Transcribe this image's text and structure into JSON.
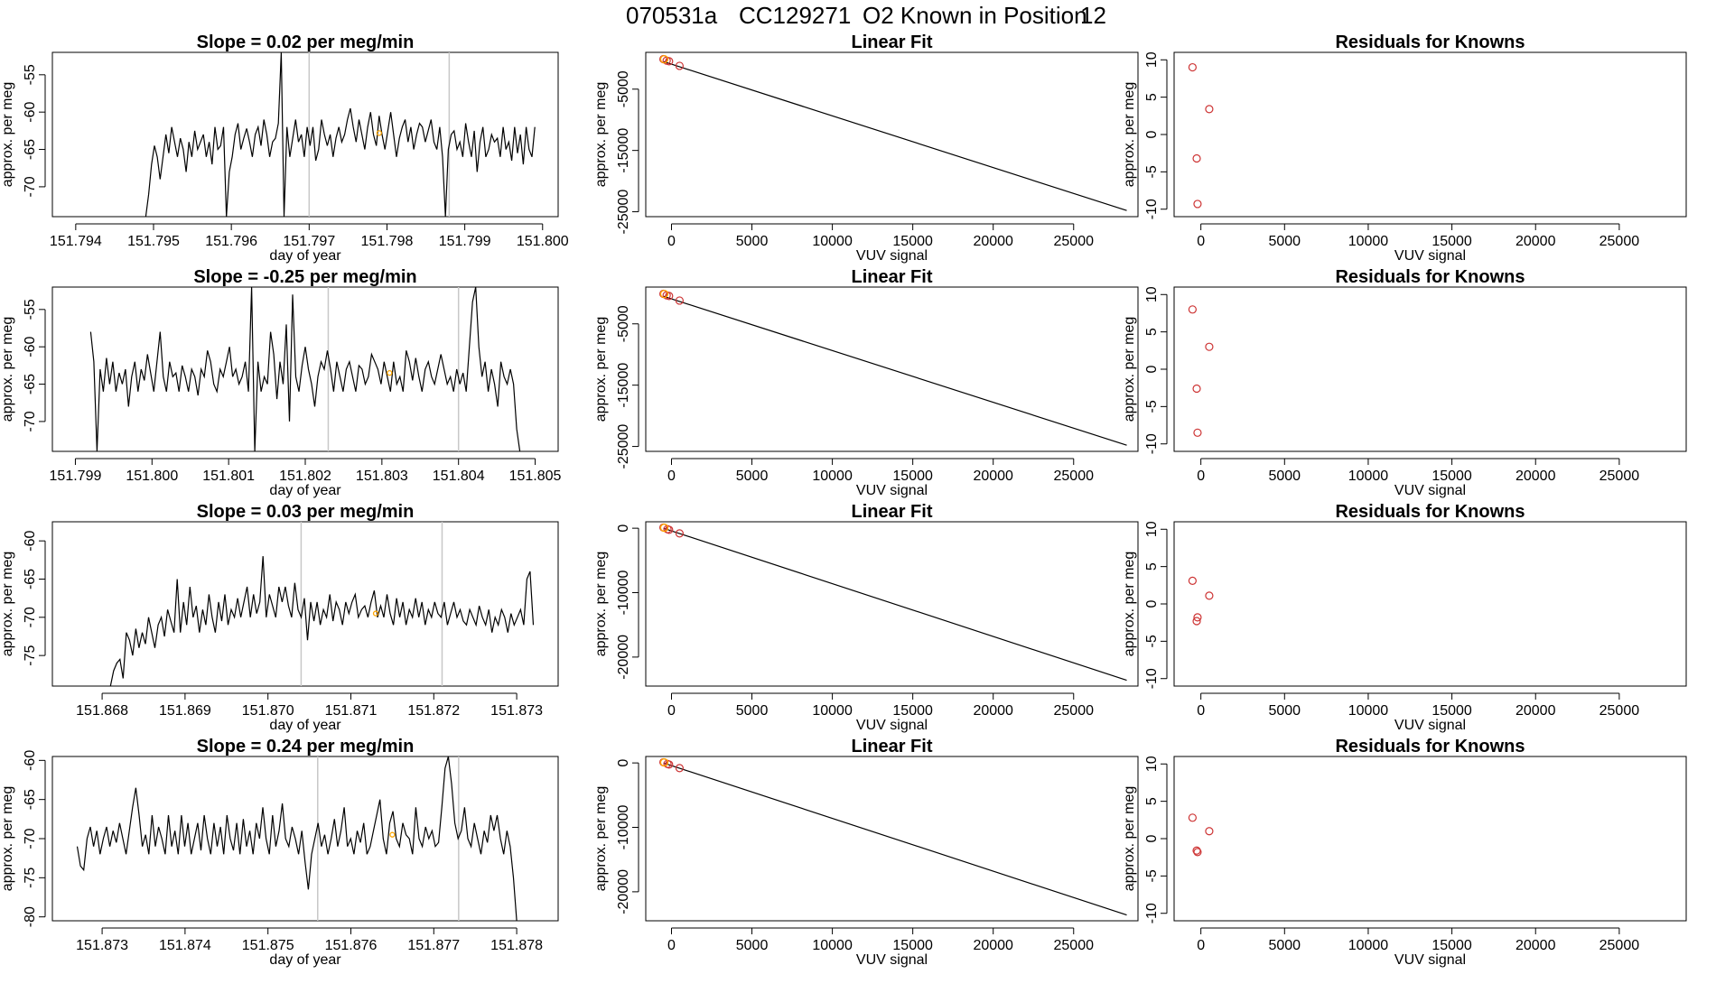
{
  "figure": {
    "title_run": "070531a",
    "title_cylinder": "CC129271",
    "title_position_text": "O2 Known in Position",
    "title_position_number": "12"
  },
  "colors": {
    "line": "#000000",
    "point_orange": "#ffa500",
    "point_red": "#cd3333",
    "vline": "#c8c8c8"
  },
  "chart_data": [
    {
      "type": "line",
      "row": 0,
      "title_prefix": "Slope =",
      "slope": "0.02",
      "title_suffix": "per meg/min",
      "xlabel": "day of year",
      "ylabel": "approx. per meg",
      "xlim": [
        151.7937,
        151.8002
      ],
      "ylim": [
        -74,
        -52
      ],
      "xticks": [
        151.794,
        151.795,
        151.796,
        151.797,
        151.798,
        151.799,
        151.8
      ],
      "xtick_labels": [
        "151.794",
        "151.795",
        "151.796",
        "151.797",
        "151.798",
        "151.799",
        "151.800"
      ],
      "yticks": [
        -55,
        -60,
        -65,
        -70
      ],
      "ytick_labels": [
        "-55",
        "-60",
        "-65",
        "-70"
      ],
      "vlines": [
        151.797,
        151.7988
      ],
      "orange_point": {
        "x": 151.7979,
        "y": -62.8
      },
      "x_start": 151.7949,
      "x_end": 151.7999,
      "y": [
        -74,
        -71,
        -67,
        -64.5,
        -66,
        -69,
        -66,
        -63,
        -65.5,
        -62,
        -64,
        -66,
        -63.5,
        -65,
        -68,
        -64,
        -66,
        -62.5,
        -65,
        -64,
        -63,
        -66,
        -64,
        -67,
        -62,
        -65,
        -64.5,
        -62,
        -74,
        -68,
        -66,
        -63,
        -61.5,
        -65,
        -63.5,
        -62.2,
        -64,
        -66,
        -63,
        -62,
        -64.5,
        -61,
        -63,
        -66,
        -64,
        -63.5,
        -61.5,
        -52,
        -74,
        -62,
        -66,
        -63.5,
        -61,
        -64,
        -63,
        -66,
        -62,
        -64.5,
        -62,
        -66.5,
        -65,
        -61,
        -63,
        -64.5,
        -63,
        -66,
        -63.5,
        -62,
        -64,
        -63,
        -61,
        -59.5,
        -62,
        -64,
        -61,
        -63,
        -65,
        -62,
        -60,
        -63,
        -64.5,
        -60.5,
        -63,
        -65,
        -62.5,
        -60,
        -63,
        -66,
        -63.5,
        -62,
        -61,
        -64,
        -62,
        -65,
        -63,
        -61.5,
        -62,
        -64,
        -62.5,
        -61,
        -64,
        -65,
        -62,
        -66,
        -74,
        -65,
        -63,
        -62.5,
        -65,
        -64,
        -66,
        -61.5,
        -64,
        -66,
        -62.5,
        -68,
        -64,
        -62,
        -66,
        -65,
        -63,
        -64,
        -63.5,
        -66,
        -62,
        -65,
        -64,
        -66.5,
        -62,
        -65.5,
        -63,
        -67,
        -62,
        -65,
        -66,
        -62
      ]
    },
    {
      "type": "scatter+line",
      "row": 0,
      "title": "Linear Fit",
      "xlabel": "VUV signal",
      "ylabel": "approx. per meg",
      "xlim": [
        -1600,
        29000
      ],
      "ylim": [
        -25800,
        1000
      ],
      "xticks": [
        0,
        5000,
        10000,
        15000,
        20000,
        25000
      ],
      "xtick_labels": [
        "0",
        "5000",
        "10000",
        "15000",
        "20000",
        "25000"
      ],
      "yticks": [
        -5000,
        -15000,
        -25000
      ],
      "ytick_labels": [
        "-5000",
        "-15000",
        "-25000"
      ],
      "fit": {
        "x1": -500,
        "y1": -500,
        "x2": 28300,
        "y2": -24800
      },
      "red_points": [
        {
          "x": -500,
          "y": -100
        },
        {
          "x": -300,
          "y": -350
        },
        {
          "x": -150,
          "y": -450
        },
        {
          "x": 500,
          "y": -1200
        }
      ],
      "orange_points": [
        {
          "x": -450,
          "y": -120
        }
      ]
    },
    {
      "type": "scatter",
      "row": 0,
      "title": "Residuals for Knowns",
      "xlabel": "VUV signal",
      "ylabel": "approx. per meg",
      "xlim": [
        -1600,
        29000
      ],
      "ylim": [
        -11,
        11
      ],
      "xticks": [
        0,
        5000,
        10000,
        15000,
        20000,
        25000
      ],
      "xtick_labels": [
        "0",
        "5000",
        "10000",
        "15000",
        "20000",
        "25000"
      ],
      "yticks": [
        10,
        5,
        0,
        -5,
        -10
      ],
      "ytick_labels": [
        "10",
        "5",
        "0",
        "-5",
        "-10"
      ],
      "red_points": [
        {
          "x": -500,
          "y": 9
        },
        {
          "x": 500,
          "y": 3.4
        },
        {
          "x": -250,
          "y": -3.2
        },
        {
          "x": -200,
          "y": -9.3
        }
      ]
    },
    {
      "type": "line",
      "row": 1,
      "title_prefix": "Slope =",
      "slope": "-0.25",
      "title_suffix": "per meg/min",
      "xlabel": "day of year",
      "ylabel": "approx. per meg",
      "xlim": [
        151.7987,
        151.8053
      ],
      "ylim": [
        -74,
        -52
      ],
      "xticks": [
        151.799,
        151.8,
        151.801,
        151.802,
        151.803,
        151.804,
        151.805
      ],
      "xtick_labels": [
        "151.799",
        "151.800",
        "151.801",
        "151.802",
        "151.803",
        "151.804",
        "151.805"
      ],
      "yticks": [
        -55,
        -60,
        -65,
        -70
      ],
      "ytick_labels": [
        "-55",
        "-60",
        "-65",
        "-70"
      ],
      "vlines": [
        151.8023,
        151.804
      ],
      "orange_point": {
        "x": 151.8031,
        "y": -63.5
      },
      "x_start": 151.7992,
      "x_end": 151.8048,
      "y": [
        -58,
        -62,
        -74,
        -63,
        -66,
        -61.5,
        -65,
        -62,
        -66,
        -63.5,
        -65,
        -63,
        -68,
        -64,
        -62,
        -66,
        -63,
        -64.5,
        -61,
        -63.5,
        -66,
        -62,
        -58,
        -64,
        -66,
        -62,
        -64,
        -63.5,
        -66,
        -62.5,
        -64,
        -66,
        -63,
        -64,
        -66.5,
        -63,
        -64,
        -60.5,
        -62,
        -65,
        -66,
        -63,
        -64,
        -62,
        -60,
        -64,
        -63,
        -65,
        -64,
        -62,
        -66,
        -52,
        -74,
        -62,
        -66,
        -64,
        -65,
        -58,
        -61,
        -67,
        -62,
        -65,
        -57,
        -70,
        -53,
        -64,
        -66,
        -62.5,
        -60,
        -63,
        -65,
        -68,
        -64,
        -62,
        -63,
        -60.5,
        -63,
        -66,
        -62,
        -64,
        -66,
        -63,
        -62,
        -64,
        -66,
        -62.5,
        -63,
        -65,
        -64,
        -61,
        -62,
        -63,
        -65,
        -62,
        -64,
        -66,
        -62,
        -65,
        -64,
        -66,
        -60.5,
        -62,
        -64.5,
        -61.5,
        -64,
        -66,
        -63,
        -62,
        -64,
        -65,
        -63,
        -61,
        -63,
        -65,
        -64,
        -66,
        -63,
        -65,
        -63.5,
        -66,
        -60,
        -54,
        -52,
        -60,
        -64,
        -62,
        -66,
        -63,
        -65,
        -68,
        -62,
        -64,
        -65,
        -63,
        -65,
        -71,
        -74
      ]
    },
    {
      "type": "scatter+line",
      "row": 1,
      "title": "Linear Fit",
      "xlabel": "VUV signal",
      "ylabel": "approx. per meg",
      "xlim": [
        -1600,
        29000
      ],
      "ylim": [
        -25800,
        1000
      ],
      "xticks": [
        0,
        5000,
        10000,
        15000,
        20000,
        25000
      ],
      "xtick_labels": [
        "0",
        "5000",
        "10000",
        "15000",
        "20000",
        "25000"
      ],
      "yticks": [
        -5000,
        -15000,
        -25000
      ],
      "ytick_labels": [
        "-5000",
        "-15000",
        "-25000"
      ],
      "fit": {
        "x1": -500,
        "y1": -500,
        "x2": 28300,
        "y2": -24800
      },
      "red_points": [
        {
          "x": -500,
          "y": -100
        },
        {
          "x": -300,
          "y": -350
        },
        {
          "x": -150,
          "y": -450
        },
        {
          "x": 500,
          "y": -1200
        }
      ],
      "orange_points": [
        {
          "x": -450,
          "y": -120
        }
      ]
    },
    {
      "type": "scatter",
      "row": 1,
      "title": "Residuals for Knowns",
      "xlabel": "VUV signal",
      "ylabel": "approx. per meg",
      "xlim": [
        -1600,
        29000
      ],
      "ylim": [
        -11,
        11
      ],
      "xticks": [
        0,
        5000,
        10000,
        15000,
        20000,
        25000
      ],
      "xtick_labels": [
        "0",
        "5000",
        "10000",
        "15000",
        "20000",
        "25000"
      ],
      "yticks": [
        10,
        5,
        0,
        -5,
        -10
      ],
      "ytick_labels": [
        "10",
        "5",
        "0",
        "-5",
        "-10"
      ],
      "red_points": [
        {
          "x": -500,
          "y": 8
        },
        {
          "x": 500,
          "y": 3
        },
        {
          "x": -250,
          "y": -2.6
        },
        {
          "x": -200,
          "y": -8.5
        }
      ]
    },
    {
      "type": "line",
      "row": 2,
      "title_prefix": "Slope =",
      "slope": "0.03",
      "title_suffix": "per meg/min",
      "xlabel": "day of year",
      "ylabel": "approx. per meg",
      "xlim": [
        151.8674,
        151.8735
      ],
      "ylim": [
        -79,
        -57.5
      ],
      "xticks": [
        151.868,
        151.869,
        151.87,
        151.871,
        151.872,
        151.873
      ],
      "xtick_labels": [
        "151.868",
        "151.869",
        "151.870",
        "151.871",
        "151.872",
        "151.873"
      ],
      "yticks": [
        -60,
        -65,
        -70,
        -75
      ],
      "ytick_labels": [
        "-60",
        "-65",
        "-70",
        "-75"
      ],
      "vlines": [
        151.8704,
        151.8721
      ],
      "orange_point": {
        "x": 151.8713,
        "y": -69.5
      },
      "x_start": 151.8681,
      "x_end": 151.8732,
      "y": [
        -79,
        -77,
        -76,
        -75.5,
        -78,
        -72,
        -73,
        -75,
        -71.5,
        -74,
        -72,
        -73.5,
        -70,
        -72,
        -74,
        -71,
        -70,
        -72.5,
        -69,
        -70.5,
        -72,
        -65,
        -72,
        -68,
        -71,
        -66,
        -70,
        -68.5,
        -72,
        -69,
        -71,
        -67,
        -70,
        -72,
        -68,
        -70.5,
        -67,
        -71,
        -69,
        -70,
        -67.5,
        -70,
        -68,
        -66,
        -70,
        -67,
        -69.5,
        -68,
        -62,
        -70,
        -67,
        -68.5,
        -70,
        -66,
        -68,
        -66,
        -68.5,
        -70,
        -65.5,
        -69,
        -70,
        -67.5,
        -73,
        -68,
        -70.5,
        -68,
        -71,
        -69,
        -70,
        -67,
        -70.5,
        -68,
        -69,
        -71,
        -68,
        -69.5,
        -68,
        -67,
        -70,
        -69,
        -68.5,
        -70,
        -68,
        -66.5,
        -70,
        -68.5,
        -70,
        -67,
        -69.5,
        -71,
        -67.5,
        -70,
        -68,
        -71,
        -69,
        -70,
        -67.5,
        -70,
        -68,
        -71,
        -69,
        -70,
        -68,
        -69.5,
        -70,
        -68,
        -71,
        -69.5,
        -68,
        -70,
        -69,
        -70.5,
        -71,
        -69,
        -70,
        -71,
        -68.5,
        -70,
        -71,
        -69,
        -72,
        -70,
        -71,
        -69,
        -70,
        -72,
        -69.5,
        -71,
        -70,
        -69,
        -71,
        -65,
        -64,
        -71
      ]
    },
    {
      "type": "scatter+line",
      "row": 2,
      "title": "Linear Fit",
      "xlabel": "VUV signal",
      "ylabel": "approx. per meg",
      "xlim": [
        -1600,
        29000
      ],
      "ylim": [
        -24500,
        1000
      ],
      "xticks": [
        0,
        5000,
        10000,
        15000,
        20000,
        25000
      ],
      "xtick_labels": [
        "0",
        "5000",
        "10000",
        "15000",
        "20000",
        "25000"
      ],
      "yticks": [
        0,
        -10000,
        -20000
      ],
      "ytick_labels": [
        "0",
        "-10000",
        "-20000"
      ],
      "fit": {
        "x1": -500,
        "y1": 0,
        "x2": 28300,
        "y2": -23600
      },
      "red_points": [
        {
          "x": -500,
          "y": 100
        },
        {
          "x": -250,
          "y": -150
        },
        {
          "x": -150,
          "y": -250
        },
        {
          "x": 500,
          "y": -800
        }
      ],
      "orange_points": [
        {
          "x": -450,
          "y": 80
        }
      ]
    },
    {
      "type": "scatter",
      "row": 2,
      "title": "Residuals for Knowns",
      "xlabel": "VUV signal",
      "ylabel": "approx. per meg",
      "xlim": [
        -1600,
        29000
      ],
      "ylim": [
        -11,
        11
      ],
      "xticks": [
        0,
        5000,
        10000,
        15000,
        20000,
        25000
      ],
      "xtick_labels": [
        "0",
        "5000",
        "10000",
        "15000",
        "20000",
        "25000"
      ],
      "yticks": [
        10,
        5,
        0,
        -5,
        -10
      ],
      "ytick_labels": [
        "10",
        "5",
        "0",
        "-5",
        "-10"
      ],
      "red_points": [
        {
          "x": -500,
          "y": 3.1
        },
        {
          "x": 500,
          "y": 1.1
        },
        {
          "x": -200,
          "y": -1.8
        },
        {
          "x": -250,
          "y": -2.3
        }
      ]
    },
    {
      "type": "line",
      "row": 3,
      "title_prefix": "Slope =",
      "slope": "0.24",
      "title_suffix": "per meg/min",
      "xlabel": "day of year",
      "ylabel": "approx. per meg",
      "xlim": [
        151.8724,
        151.8785
      ],
      "ylim": [
        -80.5,
        -59.5
      ],
      "xticks": [
        151.873,
        151.874,
        151.875,
        151.876,
        151.877,
        151.878
      ],
      "xtick_labels": [
        "151.873",
        "151.874",
        "151.875",
        "151.876",
        "151.877",
        "151.878"
      ],
      "yticks": [
        -60,
        -65,
        -70,
        -75,
        -80
      ],
      "ytick_labels": [
        "-60",
        "-65",
        "-70",
        "-75",
        "-80"
      ],
      "vlines": [
        151.8756,
        151.8773
      ],
      "orange_point": {
        "x": 151.8765,
        "y": -69.5
      },
      "x_start": 151.8727,
      "x_end": 151.878,
      "y": [
        -71,
        -73.5,
        -74,
        -70,
        -68.5,
        -71,
        -69,
        -72,
        -70,
        -68.5,
        -71,
        -69,
        -70.5,
        -68,
        -70,
        -72,
        -69,
        -66,
        -63.5,
        -67,
        -71,
        -69.5,
        -72,
        -67,
        -71,
        -68.5,
        -70,
        -72,
        -67,
        -71,
        -69,
        -72,
        -67,
        -71,
        -68,
        -72,
        -70,
        -68,
        -71.5,
        -67,
        -70,
        -72,
        -68,
        -71,
        -68.5,
        -72,
        -67,
        -70,
        -71.5,
        -68,
        -72,
        -67.5,
        -71,
        -69,
        -72,
        -68,
        -70,
        -66,
        -70,
        -72,
        -67,
        -71,
        -69,
        -65.5,
        -70,
        -71,
        -68.5,
        -70,
        -72,
        -69,
        -73,
        -76.5,
        -72,
        -70,
        -68,
        -71,
        -69.5,
        -72,
        -70,
        -67.5,
        -71,
        -69,
        -66,
        -71,
        -70,
        -72,
        -69,
        -70.5,
        -68,
        -72,
        -71,
        -69,
        -67,
        -65,
        -70,
        -72,
        -68,
        -66.5,
        -70,
        -71,
        -68,
        -69.5,
        -70,
        -72,
        -66,
        -70,
        -71,
        -68.5,
        -70,
        -69,
        -71,
        -70.5,
        -66,
        -61,
        -59.5,
        -63,
        -68,
        -70,
        -69,
        -66,
        -70,
        -71,
        -68,
        -70,
        -72,
        -69,
        -70.5,
        -67,
        -69,
        -67,
        -70,
        -72,
        -69,
        -71,
        -75,
        -80.5
      ]
    },
    {
      "type": "scatter+line",
      "row": 3,
      "title": "Linear Fit",
      "xlabel": "VUV signal",
      "ylabel": "approx. per meg",
      "xlim": [
        -1600,
        29000
      ],
      "ylim": [
        -24500,
        1000
      ],
      "xticks": [
        0,
        5000,
        10000,
        15000,
        20000,
        25000
      ],
      "xtick_labels": [
        "0",
        "5000",
        "10000",
        "15000",
        "20000",
        "25000"
      ],
      "yticks": [
        0,
        -10000,
        -20000
      ],
      "ytick_labels": [
        "0",
        "-10000",
        "-20000"
      ],
      "fit": {
        "x1": -500,
        "y1": 0,
        "x2": 28300,
        "y2": -23600
      },
      "red_points": [
        {
          "x": -500,
          "y": 100
        },
        {
          "x": -250,
          "y": -150
        },
        {
          "x": -150,
          "y": -250
        },
        {
          "x": 500,
          "y": -800
        }
      ],
      "orange_points": [
        {
          "x": -450,
          "y": 80
        }
      ]
    },
    {
      "type": "scatter",
      "row": 3,
      "title": "Residuals for Knowns",
      "xlabel": "VUV signal",
      "ylabel": "approx. per meg",
      "xlim": [
        -1600,
        29000
      ],
      "ylim": [
        -11,
        11
      ],
      "xticks": [
        0,
        5000,
        10000,
        15000,
        20000,
        25000
      ],
      "xtick_labels": [
        "0",
        "5000",
        "10000",
        "15000",
        "20000",
        "25000"
      ],
      "yticks": [
        10,
        5,
        0,
        -5,
        -10
      ],
      "ytick_labels": [
        "10",
        "5",
        "0",
        "-5",
        "-10"
      ],
      "red_points": [
        {
          "x": -500,
          "y": 2.8
        },
        {
          "x": 500,
          "y": 1.0
        },
        {
          "x": -250,
          "y": -1.6
        },
        {
          "x": -200,
          "y": -1.8
        }
      ]
    }
  ]
}
